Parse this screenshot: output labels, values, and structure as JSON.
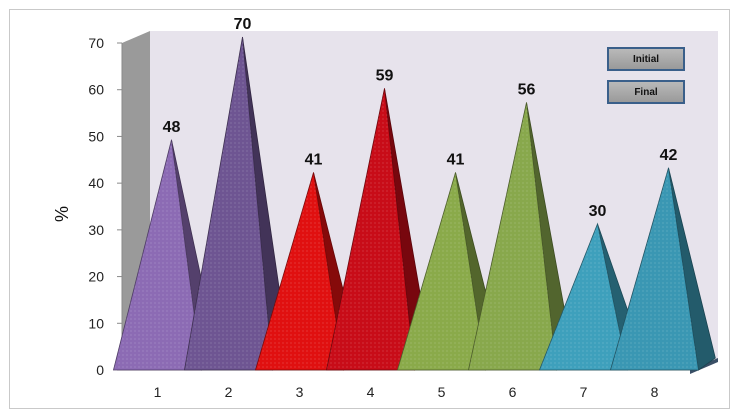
{
  "chart_data": {
    "type": "bar",
    "ylabel": "%",
    "ylim": [
      0,
      70
    ],
    "yticks": [
      0,
      10,
      20,
      30,
      40,
      50,
      60,
      70
    ],
    "categories": [
      "1",
      "2",
      "3",
      "4",
      "5",
      "6",
      "7",
      "8"
    ],
    "values": [
      48,
      70,
      41,
      59,
      41,
      56,
      30,
      42
    ],
    "colors": [
      "#8c6bb4",
      "#6e5592",
      "#e01010",
      "#c80c18",
      "#8aaa4a",
      "#88a84c",
      "#3ea0bc",
      "#3a97b3"
    ],
    "legend": [
      "Initial",
      "Final"
    ],
    "legend_position": "top-right",
    "grid": false
  }
}
